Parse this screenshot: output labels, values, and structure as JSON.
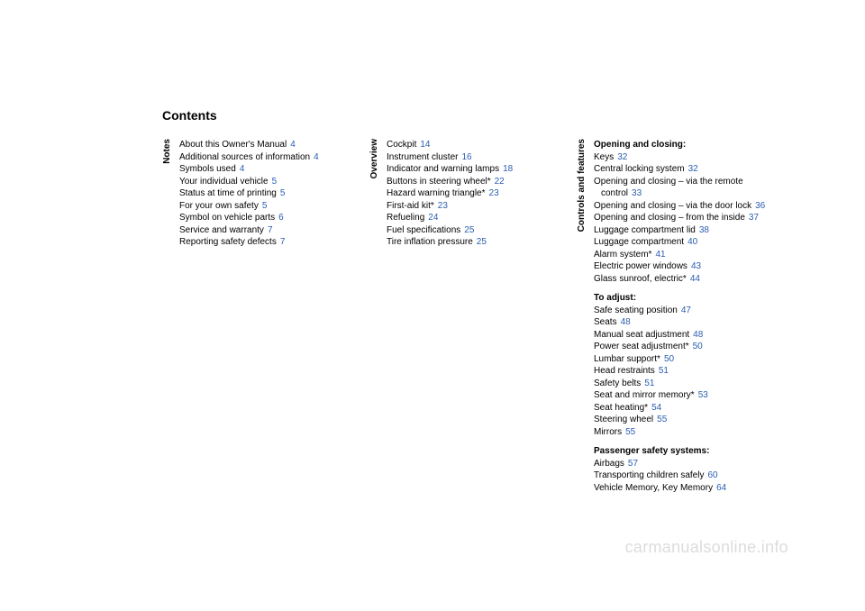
{
  "title": "Contents",
  "watermark": "carmanualsonline.info",
  "colors": {
    "text": "#000000",
    "page_ref": "#2a5db0",
    "watermark": "#dcdcdc",
    "background": "#ffffff"
  },
  "typography": {
    "title_fontsize": 14,
    "body_fontsize": 10,
    "watermark_fontsize": 18,
    "font_family": "Arial"
  },
  "columns": [
    {
      "label": "Notes",
      "groups": [
        {
          "heading": null,
          "items": [
            {
              "text": "About this Owner's Manual",
              "page": "4"
            },
            {
              "text": "Additional sources of information",
              "page": "4"
            },
            {
              "text": "Symbols used",
              "page": "4"
            },
            {
              "text": "Your individual vehicle",
              "page": "5"
            },
            {
              "text": "Status at time of printing",
              "page": "5"
            },
            {
              "text": "For your own safety",
              "page": "5"
            },
            {
              "text": "Symbol on vehicle parts",
              "page": "6"
            },
            {
              "text": "Service and warranty",
              "page": "7"
            },
            {
              "text": "Reporting safety defects",
              "page": "7"
            }
          ]
        }
      ]
    },
    {
      "label": "Overview",
      "groups": [
        {
          "heading": null,
          "items": [
            {
              "text": "Cockpit",
              "page": "14"
            },
            {
              "text": "Instrument cluster",
              "page": "16"
            },
            {
              "text": "Indicator and warning lamps",
              "page": "18"
            },
            {
              "text": "Buttons in steering wheel*",
              "page": "22"
            },
            {
              "text": "Hazard warning triangle*",
              "page": "23"
            },
            {
              "text": "First-aid kit*",
              "page": "23"
            },
            {
              "text": "Refueling",
              "page": "24"
            },
            {
              "text": "Fuel specifications",
              "page": "25"
            },
            {
              "text": "Tire inflation pressure",
              "page": "25"
            }
          ]
        }
      ]
    },
    {
      "label": "Controls and features",
      "groups": [
        {
          "heading": "Opening and closing:",
          "items": [
            {
              "text": "Keys",
              "page": "32"
            },
            {
              "text": "Central locking system",
              "page": "32"
            },
            {
              "text": "Opening and closing – via the remote control",
              "page": "33"
            },
            {
              "text": "Opening and closing – via the door lock",
              "page": "36"
            },
            {
              "text": "Opening and closing – from the inside",
              "page": "37"
            },
            {
              "text": "Luggage compartment lid",
              "page": "38"
            },
            {
              "text": "Luggage compartment",
              "page": "40"
            },
            {
              "text": "Alarm system*",
              "page": "41"
            },
            {
              "text": "Electric power windows",
              "page": "43"
            },
            {
              "text": "Glass sunroof, electric*",
              "page": "44"
            }
          ]
        },
        {
          "heading": "To adjust:",
          "items": [
            {
              "text": "Safe seating position",
              "page": "47"
            },
            {
              "text": "Seats",
              "page": "48"
            },
            {
              "text": "Manual seat adjustment",
              "page": "48"
            },
            {
              "text": "Power seat adjustment*",
              "page": "50"
            },
            {
              "text": "Lumbar support*",
              "page": "50"
            },
            {
              "text": "Head restraints",
              "page": "51"
            },
            {
              "text": "Safety belts",
              "page": "51"
            },
            {
              "text": "Seat and mirror memory*",
              "page": "53"
            },
            {
              "text": "Seat heating*",
              "page": "54"
            },
            {
              "text": "Steering wheel",
              "page": "55"
            },
            {
              "text": "Mirrors",
              "page": "55"
            }
          ]
        },
        {
          "heading": "Passenger safety systems:",
          "items": [
            {
              "text": "Airbags",
              "page": "57"
            },
            {
              "text": "Transporting children safely",
              "page": "60"
            },
            {
              "text": "Vehicle Memory, Key Memory",
              "page": "64"
            }
          ]
        }
      ]
    }
  ]
}
